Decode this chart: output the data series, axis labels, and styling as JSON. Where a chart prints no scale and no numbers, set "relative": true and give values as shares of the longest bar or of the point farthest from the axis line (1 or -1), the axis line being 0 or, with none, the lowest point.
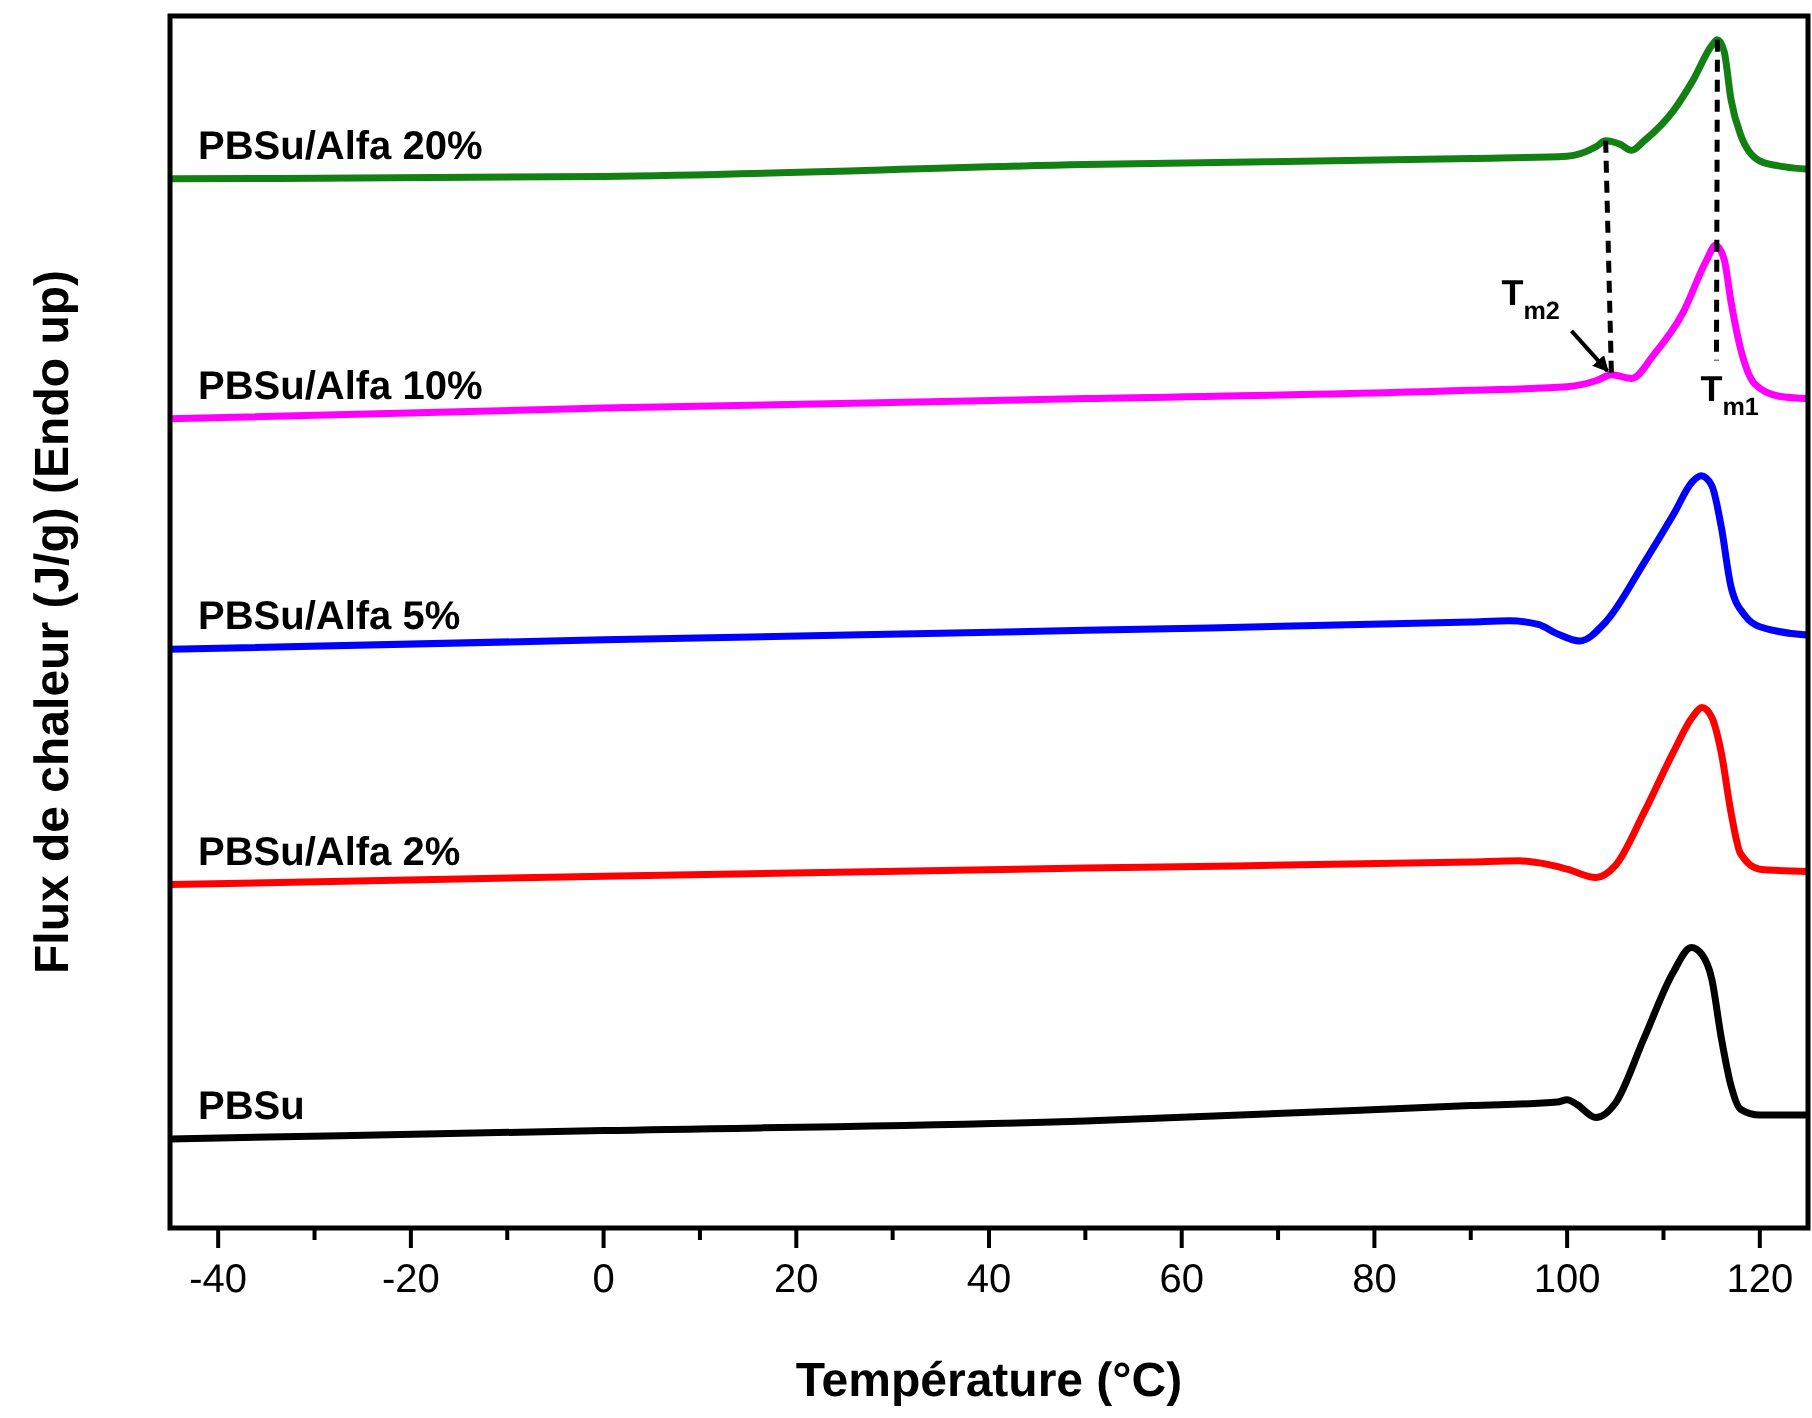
{
  "chart_data": {
    "type": "line",
    "relative": true,
    "xlabel": "Température (°C)",
    "ylabel": "Flux de chaleur (J/g) (Endo up)",
    "xlim": [
      -45,
      125
    ],
    "xticks": [
      -40,
      {
        "value": -30,
        "label": null
      },
      -20,
      {
        "value": -10,
        "label": null
      },
      0,
      {
        "value": 10,
        "label": null
      },
      20,
      {
        "value": 30,
        "label": null
      },
      40,
      {
        "value": 50,
        "label": null
      },
      60,
      {
        "value": 70,
        "label": null
      },
      80,
      {
        "value": 90,
        "label": null
      },
      100,
      {
        "value": 110,
        "label": null
      },
      120
    ],
    "grid": false,
    "line_style": "solid",
    "marker": "none",
    "series": [
      {
        "name": "PBSu/Alfa 20%",
        "color": "#138013",
        "x": [
          -45,
          0,
          50,
          90,
          100,
          103,
          104,
          105.5,
          106.7,
          108,
          111,
          113,
          115,
          115.6,
          116.3,
          117,
          118,
          120,
          122.6,
          125
        ],
        "values": [
          0.883,
          0.885,
          0.895,
          0.9,
          0.902,
          0.91,
          0.915,
          0.912,
          0.907,
          0.915,
          0.94,
          0.965,
          0.995,
          1.0,
          0.99,
          0.95,
          0.92,
          0.898,
          0.893,
          0.891
        ]
      },
      {
        "name": "PBSu/Alfa 10%",
        "color": "#ff00ff",
        "x": [
          -45,
          0,
          50,
          90,
          100,
          103,
          104.6,
          106.7,
          109,
          112,
          114.5,
          115.4,
          116.3,
          117,
          118,
          119.5,
          122,
          125
        ],
        "values": [
          0.681,
          0.69,
          0.698,
          0.705,
          0.708,
          0.713,
          0.718,
          0.715,
          0.735,
          0.77,
          0.815,
          0.827,
          0.815,
          0.78,
          0.74,
          0.71,
          0.7,
          0.698
        ]
      },
      {
        "name": "PBSu/Alfa 5%",
        "color": "#0000ff",
        "x": [
          -45,
          0,
          50,
          90,
          94,
          97,
          99,
          101.3,
          104,
          108,
          111,
          113,
          113.9,
          115,
          116,
          117,
          118.5,
          120,
          125
        ],
        "values": [
          0.487,
          0.495,
          0.503,
          0.51,
          0.511,
          0.508,
          0.5,
          0.494,
          0.51,
          0.56,
          0.6,
          0.628,
          0.633,
          0.625,
          0.59,
          0.54,
          0.515,
          0.506,
          0.499
        ]
      },
      {
        "name": "PBSu/Alfa 2%",
        "color": "#ff0000",
        "x": [
          -45,
          0,
          50,
          90,
          95,
          98,
          100,
          103,
          105,
          108,
          111,
          113,
          114,
          115,
          116,
          117,
          118,
          120,
          125
        ],
        "values": [
          0.289,
          0.296,
          0.303,
          0.308,
          0.309,
          0.306,
          0.302,
          0.295,
          0.305,
          0.35,
          0.4,
          0.43,
          0.438,
          0.43,
          0.4,
          0.35,
          0.315,
          0.302,
          0.3
        ]
      },
      {
        "name": "PBSu",
        "color": "#000000",
        "x": [
          -45,
          0,
          50,
          90,
          99,
          100,
          101,
          103,
          105,
          108,
          111,
          112.9,
          114,
          115,
          116,
          117,
          118,
          120,
          125
        ],
        "values": [
          0.075,
          0.082,
          0.09,
          0.103,
          0.106,
          0.108,
          0.104,
          0.093,
          0.105,
          0.16,
          0.215,
          0.236,
          0.23,
          0.21,
          0.16,
          0.12,
          0.1,
          0.095,
          0.095
        ]
      },
      {
        "color": "#000000",
        "line_style": "dashed",
        "x": [
          104,
          104.6
        ],
        "values": [
          0.915,
          0.718
        ]
      },
      {
        "color": "#000000",
        "line_style": "dashed",
        "x": [
          115.6,
          115.5
        ],
        "values": [
          1.0,
          0.73
        ]
      }
    ],
    "annotations": [
      {
        "text": "T$_{m2}$",
        "x": 104.6,
        "y": 0.718
      },
      {
        "text": "T$_{m1}$",
        "x": 115.5,
        "y": 0.73
      }
    ]
  }
}
